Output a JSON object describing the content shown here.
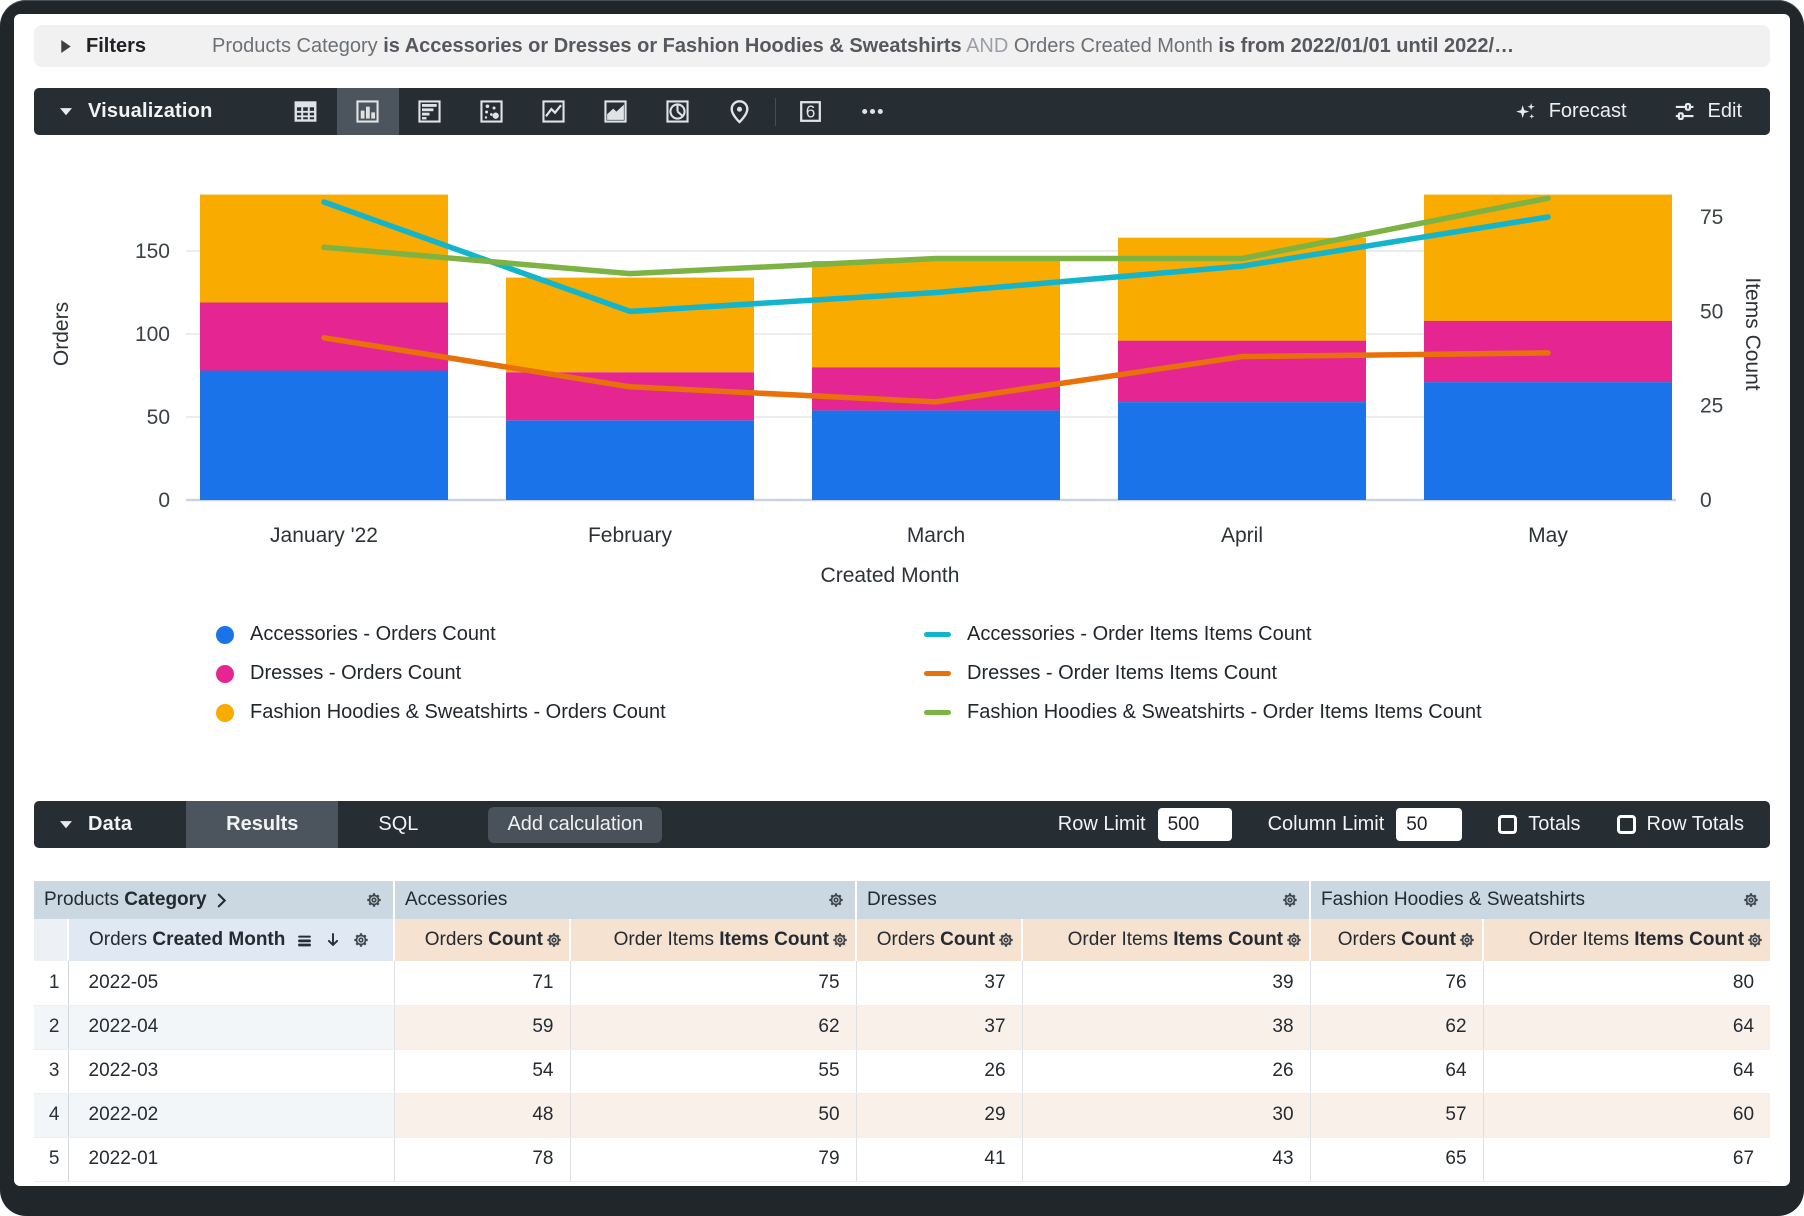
{
  "filters_bar": {
    "label": "Filters",
    "expression": [
      {
        "text": "Products Category ",
        "style": "plain"
      },
      {
        "text": "is Accessories or Dresses or Fashion Hoodies & Sweatshirts",
        "style": "bold"
      },
      {
        "text": " AND ",
        "style": "muted"
      },
      {
        "text": "Orders Created Month ",
        "style": "plain"
      },
      {
        "text": "is from 2022/01/01 until 2022/…",
        "style": "bold"
      }
    ]
  },
  "viz_toolbar": {
    "title": "Visualization",
    "chart_types": [
      "table-icon",
      "column-chart-icon",
      "bar-chart-icon",
      "scatter-plot-icon",
      "line-chart-icon",
      "area-chart-icon",
      "pie-chart-icon",
      "map-pin-icon",
      "single-value-icon",
      "more-options-icon"
    ],
    "selected_chart_type": "column-chart-icon",
    "single_value_glyph": "6",
    "forecast_label": "Forecast",
    "edit_label": "Edit"
  },
  "chart_data": {
    "type": "combo",
    "categories": [
      "January '22",
      "February",
      "March",
      "April",
      "May"
    ],
    "x_axis_title": "Created Month",
    "left_axis": {
      "title": "Orders",
      "ticks": [
        0,
        50,
        100,
        150
      ],
      "max": 200
    },
    "right_axis": {
      "title": "Items Count",
      "ticks": [
        0,
        25,
        50,
        75
      ],
      "max": 88
    },
    "bar_series": [
      {
        "name": "Accessories - Orders Count",
        "color": "#1A73E8",
        "values": [
          78,
          48,
          54,
          59,
          71
        ]
      },
      {
        "name": "Dresses - Orders Count",
        "color": "#E52592",
        "values": [
          41,
          29,
          26,
          37,
          37
        ]
      },
      {
        "name": "Fashion Hoodies & Sweatshirts - Orders Count",
        "color": "#F9AB00",
        "values": [
          65,
          57,
          64,
          62,
          76
        ]
      }
    ],
    "line_series": [
      {
        "name": "Accessories - Order Items Items Count",
        "color": "#12B5CB",
        "values": [
          79,
          50,
          55,
          62,
          75
        ]
      },
      {
        "name": "Dresses - Order Items Items Count",
        "color": "#E8710A",
        "values": [
          43,
          30,
          26,
          38,
          39
        ]
      },
      {
        "name": "Fashion Hoodies & Sweatshirts - Order Items Items Count",
        "color": "#7CB342",
        "values": [
          67,
          60,
          64,
          64,
          80
        ]
      }
    ],
    "legend_position": "bottom",
    "grid": true
  },
  "data_toolbar": {
    "title": "Data",
    "tabs": [
      "Results",
      "SQL"
    ],
    "active_tab": "Results",
    "add_calculation_label": "Add calculation",
    "row_limit_label": "Row Limit",
    "row_limit_value": "500",
    "column_limit_label": "Column Limit",
    "column_limit_value": "50",
    "totals_label": "Totals",
    "row_totals_label": "Row Totals"
  },
  "table": {
    "dimension_group": {
      "view": "Products",
      "field": "Category"
    },
    "dimension_column": {
      "view": "Orders",
      "field": "Created Month"
    },
    "measure_groups": [
      "Accessories",
      "Dresses",
      "Fashion Hoodies & Sweatshirts"
    ],
    "measure_columns": [
      {
        "view": "Orders",
        "field": "Count"
      },
      {
        "view": "Order Items",
        "field": "Items Count"
      }
    ],
    "rows": [
      {
        "index": 1,
        "dimension": "2022-05",
        "values": [
          71,
          75,
          37,
          39,
          76,
          80
        ]
      },
      {
        "index": 2,
        "dimension": "2022-04",
        "values": [
          59,
          62,
          37,
          38,
          62,
          64
        ]
      },
      {
        "index": 3,
        "dimension": "2022-03",
        "values": [
          54,
          55,
          26,
          26,
          64,
          64
        ]
      },
      {
        "index": 4,
        "dimension": "2022-02",
        "values": [
          48,
          50,
          29,
          30,
          57,
          60
        ]
      },
      {
        "index": 5,
        "dimension": "2022-01",
        "values": [
          78,
          79,
          41,
          43,
          65,
          67
        ]
      }
    ]
  },
  "colors": {
    "accessories_bar": "#1A73E8",
    "dresses_bar": "#E52592",
    "fashion_bar": "#F9AB00",
    "accessories_line": "#12B5CB",
    "dresses_line": "#E8710A",
    "fashion_line": "#7CB342",
    "toolbar_bg": "#262D33",
    "active_tile_bg": "#4C555D",
    "filters_bg": "#F1F1F2",
    "header_group_bg": "#CCD8E1",
    "header_dim_bg": "#DFE8F3",
    "header_measure_bg": "#F5E2D0"
  }
}
